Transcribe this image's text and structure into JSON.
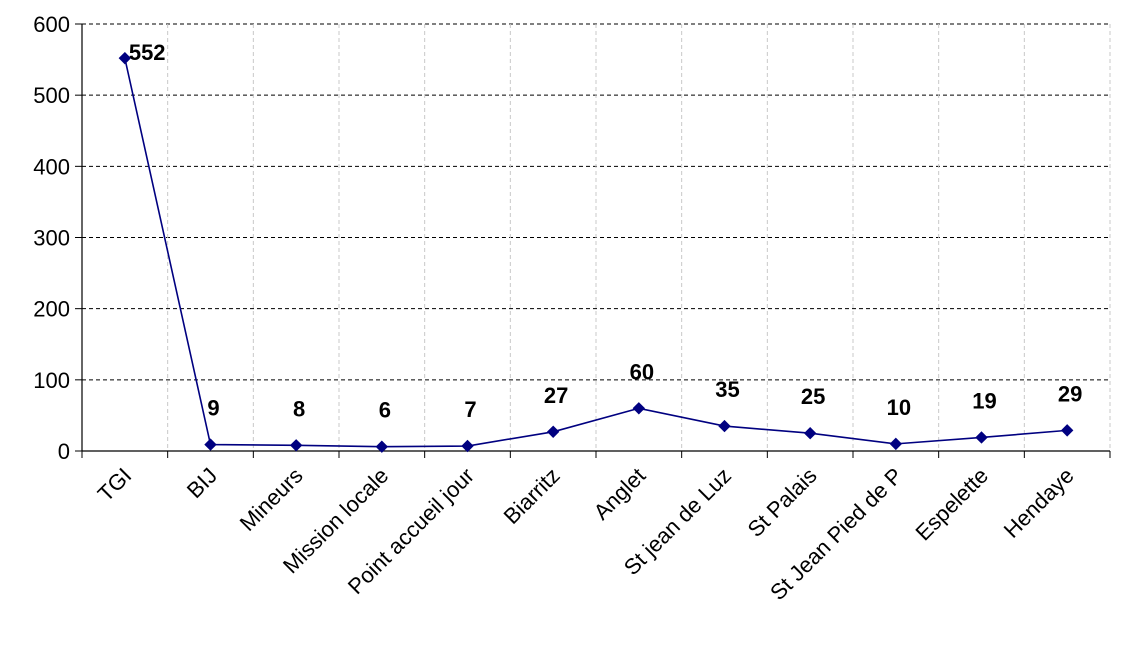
{
  "chart_data": {
    "type": "line",
    "categories": [
      "TGI",
      "BIJ",
      "Mineurs",
      "Mission locale",
      "Point accueil jour",
      "Biarritz",
      "Anglet",
      "St jean de Luz",
      "St Palais",
      "St Jean Pied de P",
      "Espelette",
      "Hendaye"
    ],
    "values": [
      552,
      9,
      8,
      6,
      7,
      27,
      60,
      35,
      25,
      10,
      19,
      29
    ],
    "ylim": [
      0,
      600
    ],
    "yticks": [
      "0",
      "100",
      "200",
      "300",
      "400",
      "500",
      "600"
    ],
    "grid": true,
    "legend": "none",
    "colors": {
      "line": "#000080",
      "marker": "#000080",
      "grid": "#808080",
      "axis": "#000000"
    }
  }
}
